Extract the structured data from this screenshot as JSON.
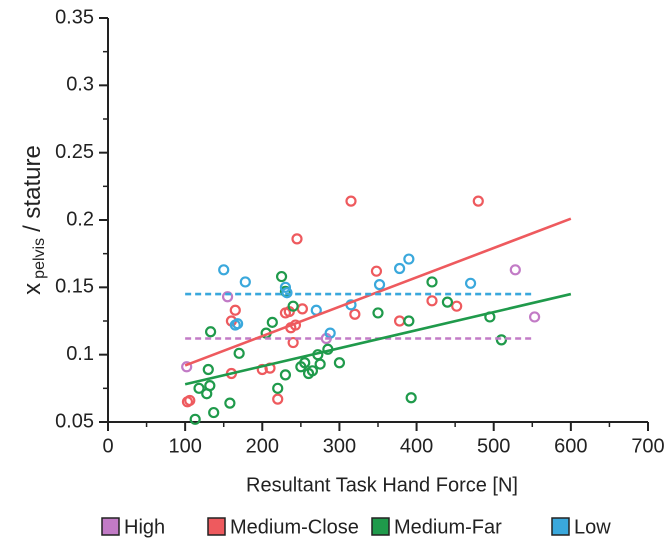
{
  "chart_data": {
    "type": "scatter",
    "xlabel": "Resultant Task Hand Force [N]",
    "ylabel": {
      "main": "x",
      "sub": "pelvis",
      "rest": "/ stature"
    },
    "xlim": [
      0,
      700
    ],
    "xticks": [
      0,
      100,
      200,
      300,
      400,
      500,
      600,
      700
    ],
    "ylim": [
      0.05,
      0.35
    ],
    "yticks": [
      0.05,
      0.1,
      0.15,
      0.2,
      0.25,
      0.3,
      0.35
    ],
    "series": [
      {
        "name": "High",
        "color": "#c27bc6",
        "x": [
          102,
          155,
          283,
          528,
          553
        ],
        "values": [
          0.091,
          0.143,
          0.112,
          0.163,
          0.128
        ],
        "fit": {
          "x": [
            100,
            550
          ],
          "y": [
            0.112,
            0.112
          ],
          "dashed": true
        }
      },
      {
        "name": "Medium-Close",
        "color": "#ee5a5e",
        "x": [
          103,
          106,
          160,
          165,
          160,
          200,
          210,
          220,
          230,
          235,
          237,
          240,
          243,
          245,
          252,
          315,
          320,
          348,
          378,
          420,
          452,
          480
        ],
        "values": [
          0.065,
          0.066,
          0.125,
          0.133,
          0.086,
          0.089,
          0.09,
          0.067,
          0.131,
          0.132,
          0.12,
          0.109,
          0.122,
          0.186,
          0.134,
          0.214,
          0.13,
          0.162,
          0.125,
          0.14,
          0.136,
          0.214
        ],
        "fit": {
          "x": [
            100,
            600
          ],
          "y": [
            0.092,
            0.201
          ],
          "dashed": false
        }
      },
      {
        "name": "Medium-Far",
        "color": "#1f9a4b",
        "x": [
          113,
          118,
          128,
          132,
          130,
          133,
          137,
          158,
          170,
          205,
          213,
          220,
          225,
          230,
          240,
          250,
          255,
          260,
          265,
          272,
          275,
          285,
          300,
          350,
          390,
          393,
          420,
          440,
          495,
          510,
          230
        ],
        "values": [
          0.052,
          0.075,
          0.071,
          0.077,
          0.089,
          0.117,
          0.057,
          0.064,
          0.101,
          0.116,
          0.124,
          0.075,
          0.158,
          0.085,
          0.136,
          0.091,
          0.094,
          0.086,
          0.088,
          0.1,
          0.093,
          0.104,
          0.094,
          0.131,
          0.125,
          0.068,
          0.154,
          0.139,
          0.128,
          0.111,
          0.147
        ],
        "fit": {
          "x": [
            100,
            600
          ],
          "y": [
            0.078,
            0.145
          ],
          "dashed": false
        }
      },
      {
        "name": "Low",
        "color": "#3aa8dc",
        "x": [
          150,
          165,
          168,
          178,
          230,
          232,
          270,
          288,
          315,
          352,
          378,
          390,
          470
        ],
        "values": [
          0.163,
          0.122,
          0.123,
          0.154,
          0.15,
          0.146,
          0.133,
          0.116,
          0.137,
          0.152,
          0.164,
          0.171,
          0.153
        ],
        "fit": {
          "x": [
            100,
            550
          ],
          "y": [
            0.145,
            0.145
          ],
          "dashed": true
        }
      }
    ]
  }
}
